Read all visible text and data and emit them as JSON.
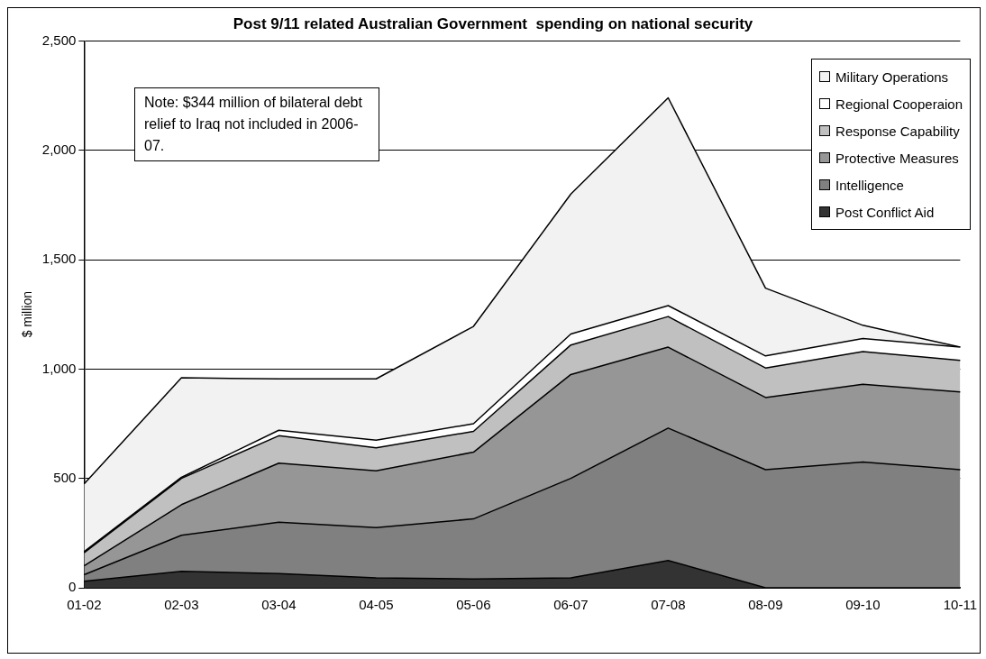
{
  "chart_data": {
    "type": "area",
    "stacked": true,
    "title": "Post 9/11 related Australian Government  spending on national security",
    "ylabel": "$ million",
    "categories": [
      "01-02",
      "02-03",
      "03-04",
      "04-05",
      "05-06",
      "06-07",
      "07-08",
      "08-09",
      "09-10",
      "10-11"
    ],
    "series": [
      {
        "name": "Post Conflict Aid",
        "color": "#333333",
        "values": [
          30,
          75,
          65,
          45,
          40,
          45,
          125,
          0,
          0,
          0
        ]
      },
      {
        "name": "Intelligence",
        "color": "#808080",
        "values": [
          30,
          165,
          235,
          230,
          275,
          455,
          605,
          540,
          575,
          540
        ]
      },
      {
        "name": "Protective Measures",
        "color": "#969696",
        "values": [
          40,
          140,
          270,
          260,
          305,
          475,
          370,
          330,
          355,
          355
        ]
      },
      {
        "name": "Response Capability",
        "color": "#c0c0c0",
        "values": [
          60,
          120,
          125,
          105,
          95,
          135,
          140,
          135,
          150,
          145
        ]
      },
      {
        "name": "Regional Cooperaion",
        "color": "#ffffff",
        "values": [
          5,
          5,
          25,
          35,
          35,
          50,
          50,
          55,
          60,
          60
        ]
      },
      {
        "name": "Military Operations",
        "color": "#f2f2f2",
        "values": [
          310,
          455,
          235,
          280,
          445,
          640,
          950,
          310,
          60,
          0
        ]
      }
    ],
    "ylim": [
      0,
      2500
    ],
    "yticks": [
      0,
      500,
      {
        "value": 1000,
        "label": "1,000"
      },
      {
        "value": 1500,
        "label": "1,500"
      },
      {
        "value": 2000,
        "label": "2,000"
      },
      {
        "value": 2500,
        "label": "2,500"
      }
    ],
    "grid": "y",
    "legend": "top right",
    "annotations": [
      "Note: $344 million of bilateral debt relief to Iraq not included in 2006-07."
    ]
  }
}
